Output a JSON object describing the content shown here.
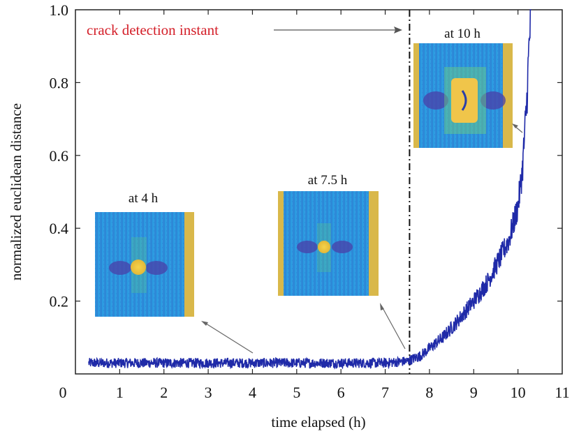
{
  "chart_data": {
    "type": "line",
    "xlabel": "time elapsed (h)",
    "ylabel": "normalized euclidean distance",
    "xlim": [
      0,
      11
    ],
    "ylim": [
      0,
      1.0
    ],
    "x_ticks": [
      "0",
      "1",
      "2",
      "3",
      "4",
      "5",
      "6",
      "7",
      "8",
      "9",
      "10",
      "11"
    ],
    "y_ticks": [
      "0.2",
      "0.4",
      "0.6",
      "0.8",
      "1.0"
    ],
    "grid": false,
    "series": [
      {
        "color": "#1f2aa8",
        "x": [
          0.3,
          1,
          2,
          3,
          4,
          5,
          6,
          7,
          7.5,
          7.8,
          8,
          8.3,
          8.6,
          9,
          9.3,
          9.6,
          9.8,
          10,
          10.1,
          10.2,
          10.25,
          10.3
        ],
        "y": [
          0.03,
          0.03,
          0.03,
          0.03,
          0.03,
          0.03,
          0.03,
          0.03,
          0.035,
          0.05,
          0.07,
          0.1,
          0.14,
          0.2,
          0.25,
          0.32,
          0.37,
          0.46,
          0.56,
          0.75,
          0.9,
          1.0
        ]
      }
    ],
    "vline": {
      "x": 7.55,
      "style": "dash-dot",
      "color": "#111111"
    },
    "annotations": [
      {
        "text": "crack detection instant",
        "color": "#d4202a"
      }
    ],
    "insets": [
      {
        "label": "at 4 h",
        "points_to_x": 4.2
      },
      {
        "label": "at 7.5 h",
        "points_to_x": 7.5
      },
      {
        "label": "at 10 h",
        "points_to_x": 10.0
      }
    ]
  }
}
